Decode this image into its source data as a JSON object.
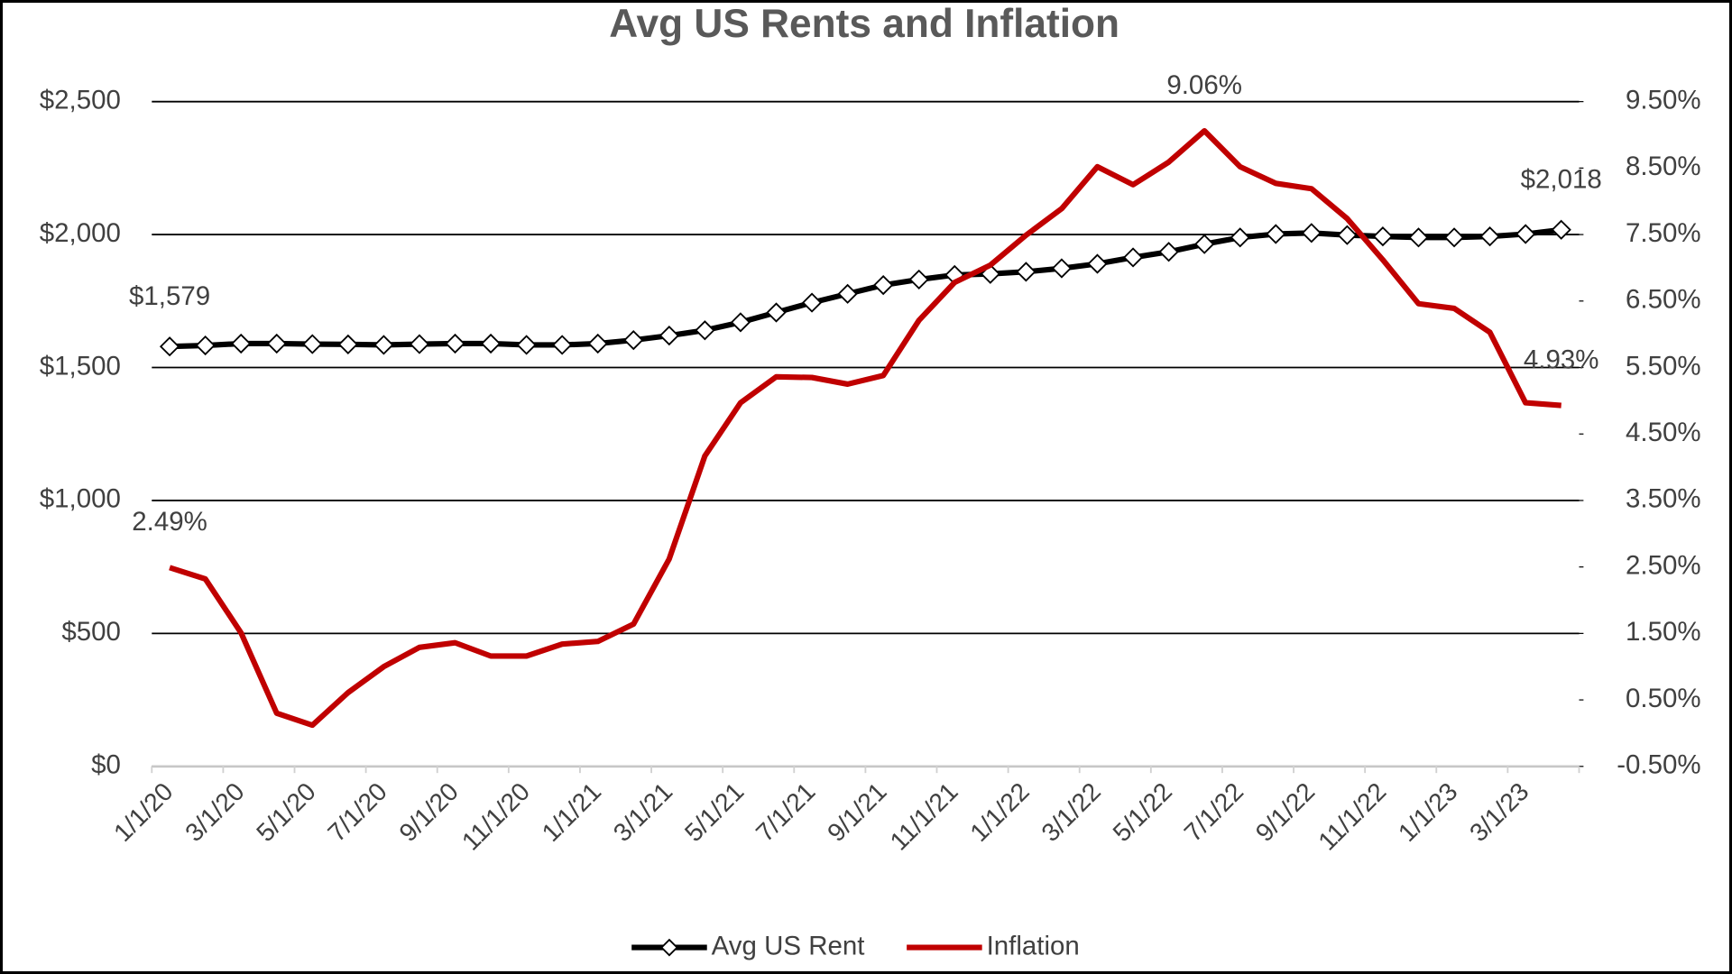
{
  "chart_data": {
    "type": "line",
    "title": "Avg US Rents and Inflation",
    "categories": [
      "1/1/20",
      null,
      "3/1/20",
      null,
      "5/1/20",
      null,
      "7/1/20",
      null,
      "9/1/20",
      null,
      "11/1/20",
      null,
      "1/1/21",
      null,
      "3/1/21",
      null,
      "5/1/21",
      null,
      "7/1/21",
      null,
      "9/1/21",
      null,
      "11/1/21",
      null,
      "1/1/22",
      null,
      "3/1/22",
      null,
      "5/1/22",
      null,
      "7/1/22",
      null,
      "9/1/22",
      null,
      "11/1/22",
      null,
      "1/1/23",
      null,
      "3/1/23",
      null
    ],
    "series": [
      {
        "name": "Avg US Rent",
        "color": "#000000",
        "axis": "y",
        "marker": "diamond",
        "values": [
          1579,
          1583,
          1590,
          1590,
          1588,
          1587,
          1585,
          1588,
          1590,
          1590,
          1585,
          1585,
          1590,
          1603,
          1620,
          1640,
          1670,
          1707,
          1744,
          1777,
          1810,
          1831,
          1848,
          1852,
          1860,
          1873,
          1890,
          1914,
          1935,
          1964,
          1989,
          2002,
          2006,
          1998,
          1993,
          1989,
          1989,
          1993,
          2002,
          2018
        ],
        "value_labels": [
          "$1,579",
          null,
          null,
          null,
          null,
          null,
          null,
          null,
          null,
          null,
          null,
          null,
          null,
          null,
          null,
          null,
          null,
          null,
          null,
          null,
          null,
          null,
          null,
          null,
          null,
          null,
          null,
          null,
          null,
          null,
          null,
          null,
          null,
          null,
          null,
          null,
          null,
          null,
          null,
          "$2,018"
        ]
      },
      {
        "name": "Inflation",
        "color": "#c00000",
        "axis": "y2",
        "values": [
          2.49,
          2.32,
          1.51,
          0.3,
          0.12,
          0.61,
          1.0,
          1.29,
          1.36,
          1.16,
          1.16,
          1.34,
          1.38,
          1.64,
          2.62,
          4.17,
          4.97,
          5.36,
          5.35,
          5.25,
          5.38,
          6.21,
          6.78,
          7.04,
          7.49,
          7.89,
          8.52,
          8.25,
          8.59,
          9.06,
          8.52,
          8.27,
          8.19,
          7.74,
          7.12,
          6.46,
          6.39,
          6.03,
          4.97,
          4.93
        ],
        "value_labels": [
          "2.49%",
          null,
          null,
          null,
          null,
          null,
          null,
          null,
          null,
          null,
          null,
          null,
          null,
          null,
          null,
          null,
          null,
          null,
          null,
          null,
          null,
          null,
          null,
          null,
          null,
          null,
          null,
          null,
          null,
          "9.06%",
          null,
          null,
          null,
          null,
          null,
          null,
          null,
          null,
          null,
          "4.93%"
        ]
      }
    ],
    "ylim": [
      0,
      2500
    ],
    "yticks": [
      {
        "value": 0,
        "label": "$0"
      },
      {
        "value": 500,
        "label": "$500"
      },
      {
        "value": 1000,
        "label": "$1,000"
      },
      {
        "value": 1500,
        "label": "$1,500"
      },
      {
        "value": 2000,
        "label": "$2,000"
      },
      {
        "value": 2500,
        "label": "$2,500"
      }
    ],
    "y2lim": [
      -0.5,
      9.5
    ],
    "y2ticks": [
      {
        "value": -0.5,
        "label": "-0.50%"
      },
      {
        "value": 0.5,
        "label": "0.50%"
      },
      {
        "value": 1.5,
        "label": "1.50%"
      },
      {
        "value": 2.5,
        "label": "2.50%"
      },
      {
        "value": 3.5,
        "label": "3.50%"
      },
      {
        "value": 4.5,
        "label": "4.50%"
      },
      {
        "value": 5.5,
        "label": "5.50%"
      },
      {
        "value": 6.5,
        "label": "6.50%"
      },
      {
        "value": 7.5,
        "label": "7.50%"
      },
      {
        "value": 8.5,
        "label": "8.50%"
      },
      {
        "value": 9.5,
        "label": "9.50%"
      }
    ],
    "grid": true,
    "legend": "bottom"
  }
}
